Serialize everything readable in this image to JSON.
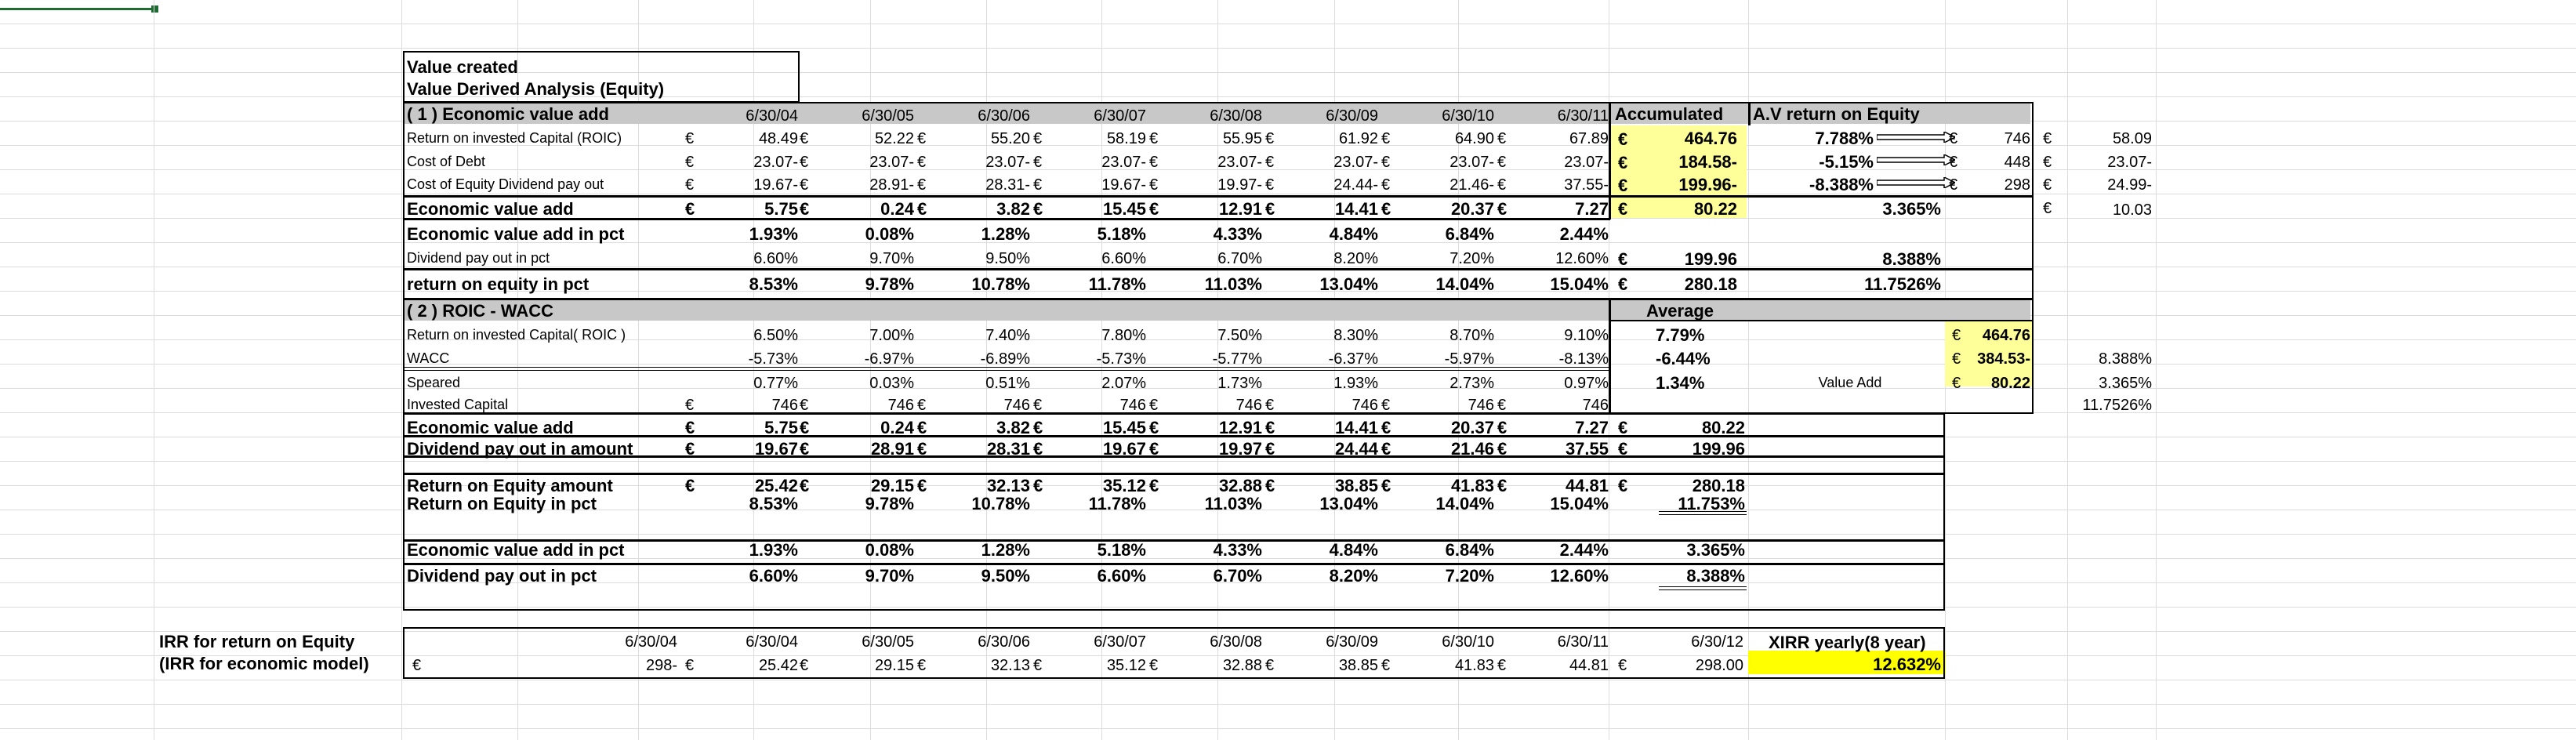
{
  "sheet": {
    "title1": "Value created",
    "title2": "Value Derived Analysis (Equity)",
    "section1": "( 1 ) Economic value add",
    "section2": "( 2 )  ROIC  -  WACC",
    "dates": [
      "6/30/04",
      "6/30/05",
      "6/30/06",
      "6/30/07",
      "6/30/08",
      "6/30/09",
      "6/30/10",
      "6/30/11"
    ],
    "accumulated": "Accumulated",
    "av_return": "A.V return on Equity",
    "average": "Average",
    "currency": "€"
  },
  "section1_rows": [
    {
      "label": "Return on invested Capital (ROIC)",
      "values": [
        "48.49",
        "52.22",
        "55.20",
        "58.19",
        "55.95",
        "61.92",
        "64.90",
        "67.89"
      ],
      "acc": "464.76",
      "av": "7.788%",
      "amt": "746",
      "far": "58.09"
    },
    {
      "label": "Cost of Debt",
      "values": [
        "23.07-",
        "23.07-",
        "23.07-",
        "23.07-",
        "23.07-",
        "23.07-",
        "23.07-",
        "23.07-"
      ],
      "acc": "184.58-",
      "av": "-5.15%",
      "amt": "448",
      "far": "23.07-"
    },
    {
      "label": "Cost of Equity Dividend pay out",
      "values": [
        "19.67-",
        "28.91-",
        "28.31-",
        "19.67-",
        "19.97-",
        "24.44-",
        "21.46-",
        "37.55-"
      ],
      "acc": "199.96-",
      "av": "-8.388%",
      "amt": "298",
      "far": "24.99-"
    }
  ],
  "eva_row": {
    "label": "Economic value add",
    "values": [
      "5.75",
      "0.24",
      "3.82",
      "15.45",
      "12.91",
      "14.41",
      "20.37",
      "7.27"
    ],
    "acc": "80.22",
    "av": "3.365%",
    "far": "10.03"
  },
  "eva_pct_row": {
    "label": "Economic value add in pct",
    "values": [
      "1.93%",
      "0.08%",
      "1.28%",
      "5.18%",
      "4.33%",
      "4.84%",
      "6.84%",
      "2.44%"
    ]
  },
  "div_pct_row": {
    "label": "Dividend pay out in pct",
    "values": [
      "6.60%",
      "9.70%",
      "9.50%",
      "6.60%",
      "6.70%",
      "8.20%",
      "7.20%",
      "12.60%"
    ],
    "acc": "199.96",
    "av": "8.388%"
  },
  "roe_pct_row": {
    "label": " return on equity in pct",
    "values": [
      "8.53%",
      "9.78%",
      "10.78%",
      "11.78%",
      "11.03%",
      "13.04%",
      "14.04%",
      "15.04%"
    ],
    "acc": "280.18",
    "av": "11.7526%"
  },
  "section2_rows": [
    {
      "label": "Return on invested Capital( ROIC )",
      "values": [
        "6.50%",
        "7.00%",
        "7.40%",
        "7.80%",
        "7.50%",
        "8.30%",
        "8.70%",
        "9.10%"
      ],
      "avg": "7.79%",
      "side": "464.76"
    },
    {
      "label": "WACC",
      "values": [
        "-5.73%",
        "-6.97%",
        "-6.89%",
        "-5.73%",
        "-5.77%",
        "-6.37%",
        "-5.97%",
        "-8.13%"
      ],
      "avg": "-6.44%",
      "side": "384.53-",
      "far": "8.388%"
    },
    {
      "label": "Speared",
      "values": [
        "0.77%",
        "0.03%",
        "0.51%",
        "2.07%",
        "1.73%",
        "1.93%",
        "2.73%",
        "0.97%"
      ],
      "avg": "1.34%",
      "va": "Value Add",
      "side": "80.22",
      "far": "3.365%"
    },
    {
      "label": "Invested Capital",
      "values": [
        "746",
        "746",
        "746",
        "746",
        "746",
        "746",
        "746",
        "746"
      ],
      "far": "11.7526%"
    }
  ],
  "summary": {
    "eva": {
      "label": "Economic value add",
      "values": [
        "5.75",
        "0.24",
        "3.82",
        "15.45",
        "12.91",
        "14.41",
        "20.37",
        "7.27"
      ],
      "acc": "80.22"
    },
    "div": {
      "label": "Dividend pay out in amount",
      "values": [
        "19.67",
        "28.91",
        "28.31",
        "19.67",
        "19.97",
        "24.44",
        "21.46",
        "37.55"
      ],
      "acc": "199.96"
    },
    "roe_amt": {
      "label": "Return on Equity amount",
      "values": [
        "25.42",
        "29.15",
        "32.13",
        "35.12",
        "32.88",
        "38.85",
        "41.83",
        "44.81"
      ],
      "acc": "280.18"
    },
    "roe_pct": {
      "label": "Return on Equity  in pct",
      "values": [
        "8.53%",
        "9.78%",
        "10.78%",
        "11.78%",
        "11.03%",
        "13.04%",
        "14.04%",
        "15.04%"
      ],
      "acc": "11.753%"
    },
    "eva_pct": {
      "label": "Economic value add in pct",
      "values": [
        "1.93%",
        "0.08%",
        "1.28%",
        "5.18%",
        "4.33%",
        "4.84%",
        "6.84%",
        "2.44%"
      ],
      "acc": "3.365%"
    },
    "div_pct": {
      "label": "Dividend pay out in pct",
      "values": [
        "6.60%",
        "9.70%",
        "9.50%",
        "6.60%",
        "6.70%",
        "8.20%",
        "7.20%",
        "12.60%"
      ],
      "acc": "8.388%"
    }
  },
  "irr": {
    "label1": "IRR  for return on Equity",
    "label2": "(IRR for economic model)",
    "dates": [
      "6/30/04",
      "6/30/04",
      "6/30/05",
      "6/30/06",
      "6/30/07",
      "6/30/08",
      "6/30/09",
      "6/30/10",
      "6/30/11",
      "6/30/12"
    ],
    "values": [
      "298-",
      "25.42",
      "29.15",
      "32.13",
      "35.12",
      "32.88",
      "38.85",
      "41.83",
      "44.81",
      "298.00"
    ],
    "xirr_label": "XIRR yearly(8 year)",
    "xirr_value": "12.632%"
  }
}
